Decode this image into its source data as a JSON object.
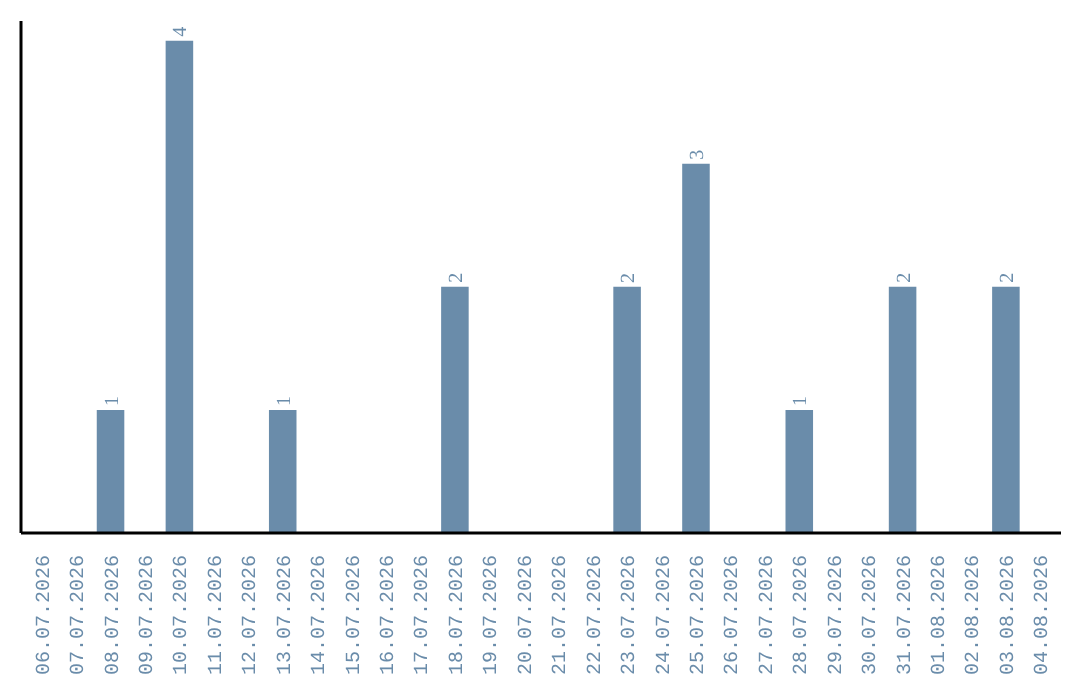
{
  "chart_data": {
    "type": "bar",
    "categories": [
      "06.07.2026",
      "07.07.2026",
      "08.07.2026",
      "09.07.2026",
      "10.07.2026",
      "11.07.2026",
      "12.07.2026",
      "13.07.2026",
      "14.07.2026",
      "15.07.2026",
      "16.07.2026",
      "17.07.2026",
      "18.07.2026",
      "19.07.2026",
      "20.07.2026",
      "21.07.2026",
      "22.07.2026",
      "23.07.2026",
      "24.07.2026",
      "25.07.2026",
      "26.07.2026",
      "27.07.2026",
      "28.07.2026",
      "29.07.2026",
      "30.07.2026",
      "31.07.2026",
      "01.08.2026",
      "02.08.2026",
      "03.08.2026",
      "04.08.2026"
    ],
    "values": [
      0,
      0,
      1,
      0,
      4,
      0,
      0,
      1,
      0,
      0,
      0,
      0,
      2,
      0,
      0,
      0,
      0,
      2,
      0,
      3,
      0,
      0,
      1,
      0,
      0,
      2,
      0,
      0,
      2,
      0
    ],
    "value_labels": [
      null,
      null,
      "1",
      null,
      "4",
      null,
      null,
      "1",
      null,
      null,
      null,
      null,
      "2",
      null,
      null,
      null,
      null,
      "2",
      null,
      "3",
      null,
      null,
      "1",
      null,
      null,
      "2",
      null,
      null,
      "2",
      null
    ],
    "color": "#6a8caa",
    "tick_labels": "x",
    "grid": false
  }
}
